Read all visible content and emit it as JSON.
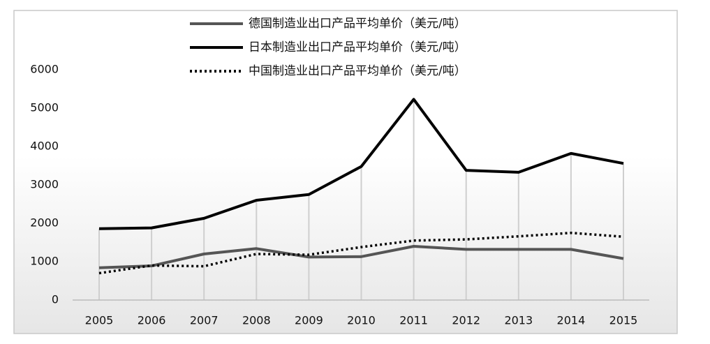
{
  "chart_data": {
    "type": "line",
    "categories": [
      "2005",
      "2006",
      "2007",
      "2008",
      "2009",
      "2010",
      "2011",
      "2012",
      "2013",
      "2014",
      "2015"
    ],
    "series": [
      {
        "name": "德国制造业出口产品平均单价（美元/吨）",
        "color": "#555555",
        "dash": "solid",
        "values": [
          840,
          890,
          1200,
          1340,
          1120,
          1130,
          1400,
          1320,
          1320,
          1320,
          1080
        ]
      },
      {
        "name": "日本制造业出口产品平均单价（美元/吨）",
        "color": "#000000",
        "dash": "solid",
        "values": [
          1860,
          1880,
          2130,
          2600,
          2750,
          3480,
          5230,
          3380,
          3330,
          3820,
          3560
        ]
      },
      {
        "name": "中国制造业出口产品平均单价（美元/吨）",
        "color": "#000000",
        "dash": "dotted",
        "values": [
          700,
          900,
          880,
          1200,
          1180,
          1380,
          1550,
          1580,
          1660,
          1750,
          1650
        ]
      }
    ],
    "ylim": [
      0,
      6000
    ],
    "yticks": [
      0,
      1000,
      2000,
      3000,
      4000,
      5000,
      6000
    ],
    "legend": "top",
    "drop_lines": true
  }
}
